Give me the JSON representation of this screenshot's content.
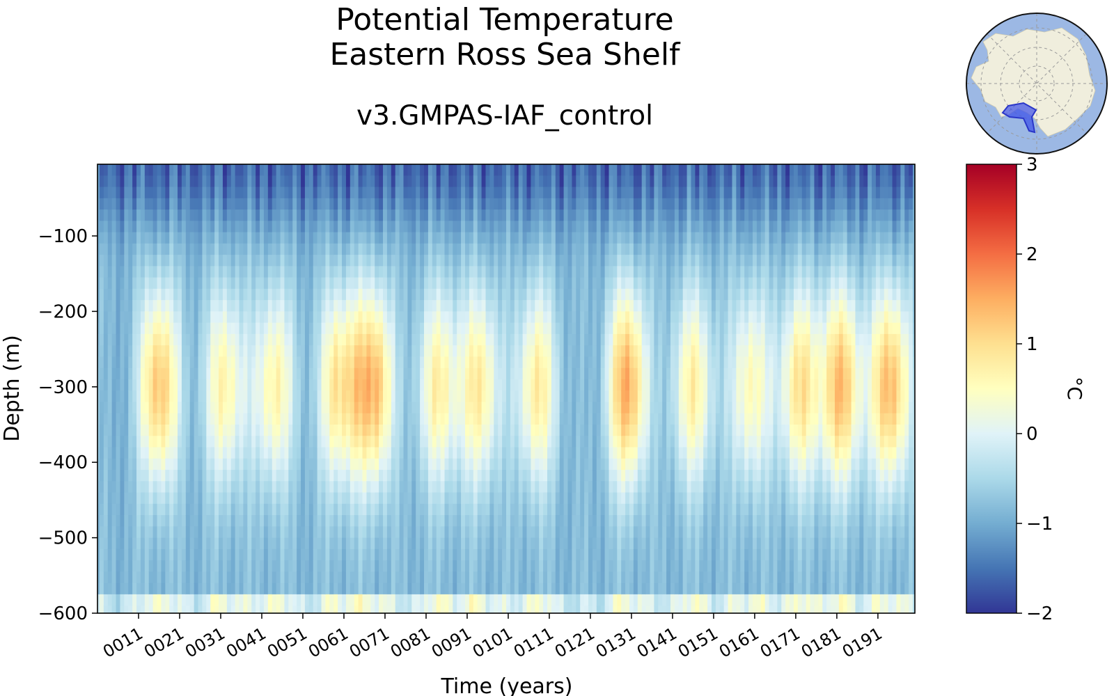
{
  "chart_data": {
    "type": "heatmap",
    "title": [
      "Potential Temperature",
      "Eastern Ross Sea Shelf"
    ],
    "subtitle": "v3.GMPAS-IAF_control",
    "xlabel": "Time (years)",
    "ylabel": "Depth (m)",
    "x_range": [
      1,
      200
    ],
    "y_range": [
      -600,
      -5
    ],
    "x_tick_labels": [
      "0011",
      "0021",
      "0031",
      "0041",
      "0051",
      "0061",
      "0071",
      "0081",
      "0091",
      "0101",
      "0111",
      "0121",
      "0131",
      "0141",
      "0151",
      "0161",
      "0171",
      "0181",
      "0191"
    ],
    "y_tick_labels": [
      "−100",
      "−200",
      "−300",
      "−400",
      "−500",
      "−600"
    ],
    "y_ticks": [
      -100,
      -200,
      -300,
      -400,
      -500,
      -600
    ],
    "colorbar": {
      "label": "°C",
      "vmin": -2,
      "vmax": 3,
      "ticks": [
        3,
        2,
        1,
        0,
        -1,
        -2
      ],
      "tick_labels": [
        "3",
        "2",
        "1",
        "0",
        "−1",
        "−2"
      ],
      "colormap": "RdYlBu_r",
      "colors": [
        "#313695",
        "#4575b4",
        "#74add1",
        "#abd9e9",
        "#e0f3f8",
        "#ffffbf",
        "#fee090",
        "#fdae61",
        "#f46d43",
        "#d73027",
        "#a50026"
      ]
    },
    "warm_events_peak_temp_c": [
      {
        "year": 16,
        "temp": 1.3
      },
      {
        "year": 32,
        "temp": 0.7
      },
      {
        "year": 44,
        "temp": 0.7
      },
      {
        "year": 60,
        "temp": 1.0
      },
      {
        "year": 68,
        "temp": 1.5
      },
      {
        "year": 84,
        "temp": 0.7
      },
      {
        "year": 94,
        "temp": 0.8
      },
      {
        "year": 108,
        "temp": 0.8
      },
      {
        "year": 130,
        "temp": 1.5
      },
      {
        "year": 146,
        "temp": 0.7
      },
      {
        "year": 160,
        "temp": 0.6
      },
      {
        "year": 172,
        "temp": 0.9
      },
      {
        "year": 182,
        "temp": 1.3
      },
      {
        "year": 194,
        "temp": 1.4
      }
    ],
    "surface_temp_c": -1.6,
    "bottom_temp_c": 0.3,
    "grid": false,
    "inset_map": "Antarctic polar map with Eastern Ross Sea Shelf region highlighted"
  }
}
